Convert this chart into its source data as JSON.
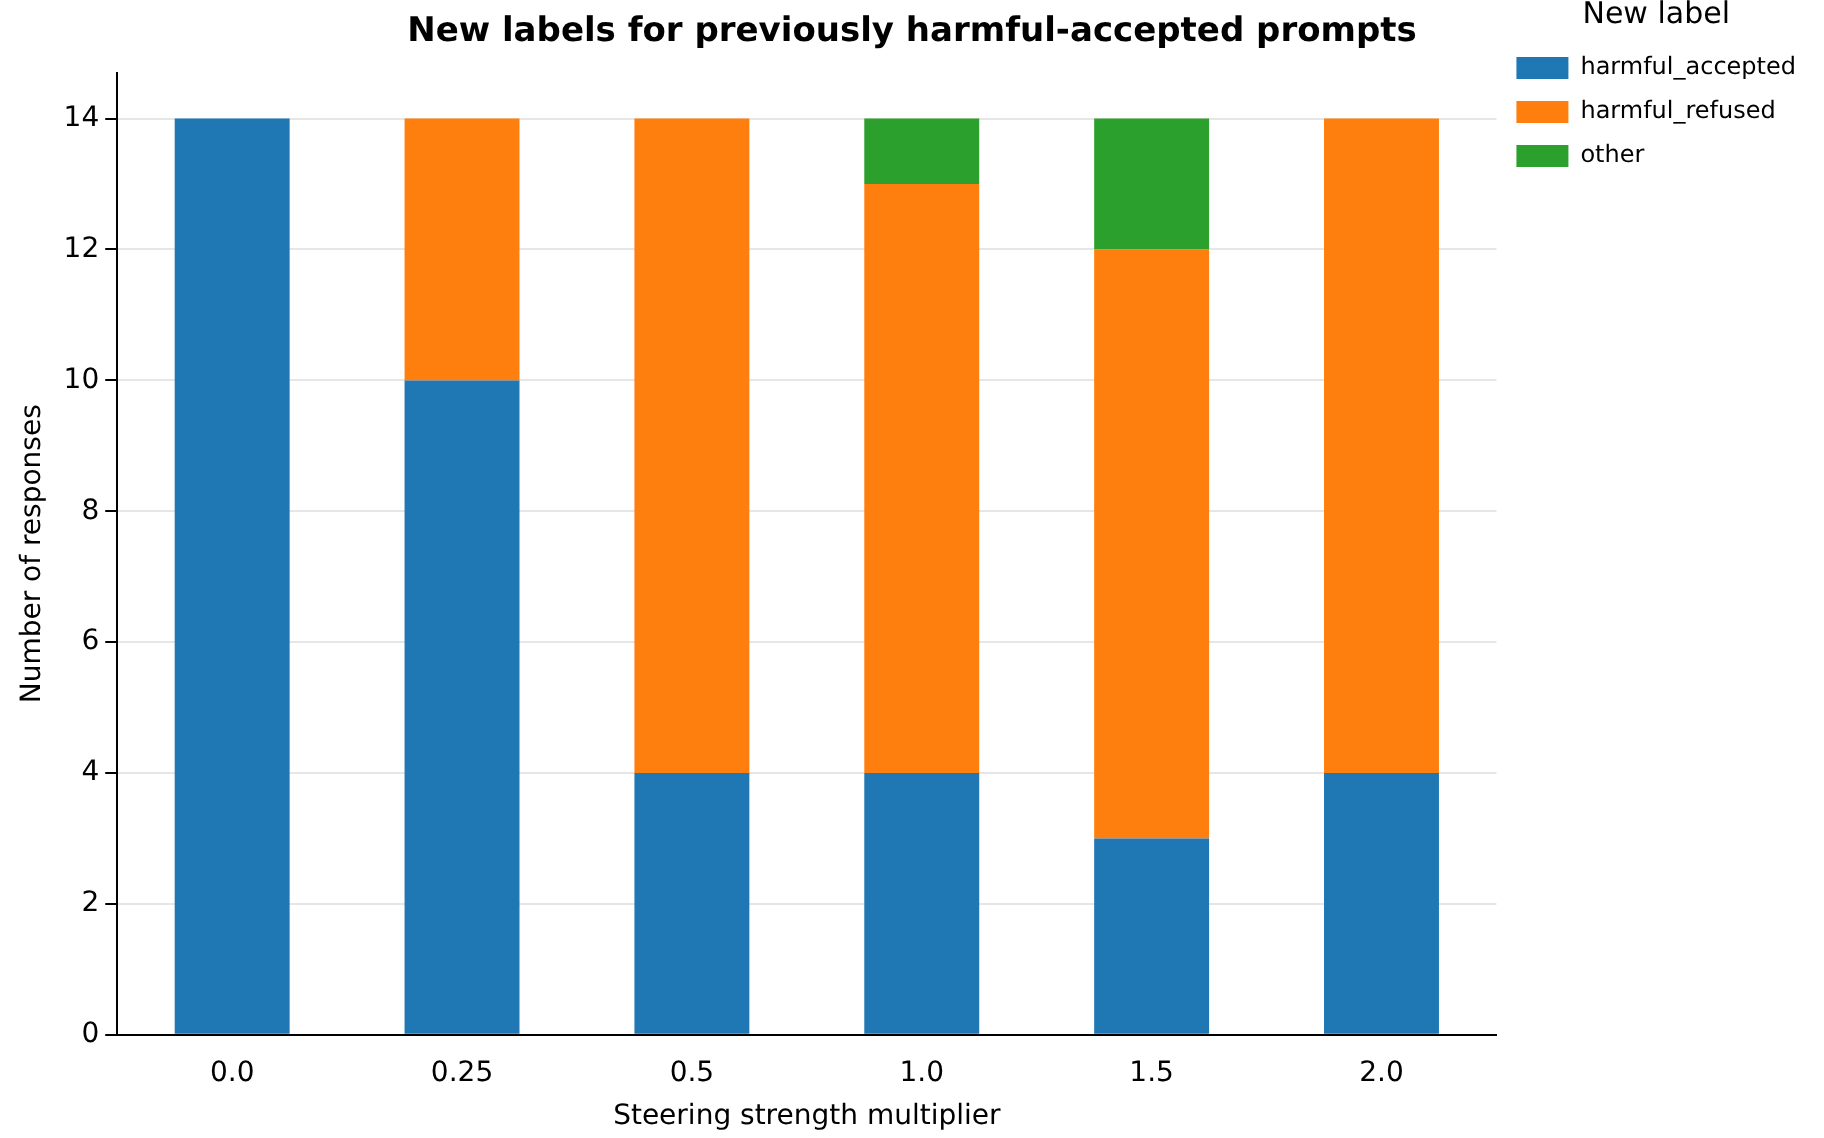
{
  "chart_data": {
    "type": "bar",
    "title": "New labels for previously harmful-accepted prompts",
    "xlabel": "Steering strength multiplier",
    "ylabel": "Number of responses",
    "legend_title": "New label",
    "categories": [
      "0.0",
      "0.25",
      "0.5",
      "1.0",
      "1.5",
      "2.0"
    ],
    "series": [
      {
        "name": "harmful_accepted",
        "color": "#1f77b4",
        "values": [
          14,
          10,
          4,
          4,
          3,
          4
        ]
      },
      {
        "name": "harmful_refused",
        "color": "#ff7f0e",
        "values": [
          0,
          4,
          10,
          9,
          9,
          10
        ]
      },
      {
        "name": "other",
        "color": "#2ca02c",
        "values": [
          0,
          0,
          0,
          1,
          2,
          0
        ]
      }
    ],
    "stacked": true,
    "ylim": [
      0,
      14.7
    ],
    "yticks": [
      0,
      2,
      4,
      6,
      8,
      10,
      12,
      14
    ],
    "grid": "y",
    "legend": "top right"
  }
}
